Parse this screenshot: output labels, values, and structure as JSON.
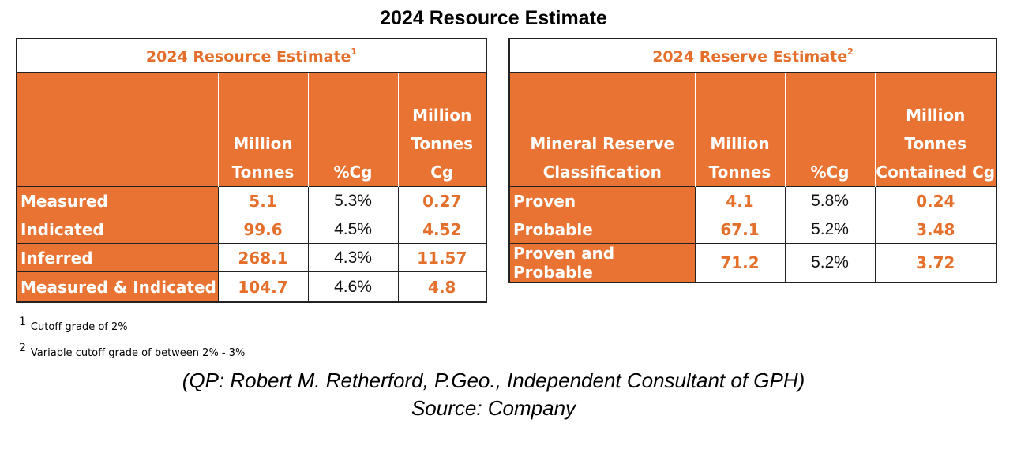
{
  "title": "2024 Resource Estimate",
  "resource": {
    "caption": "2024 Resource Estimate",
    "caption_sup": "1",
    "headers": [
      [],
      [
        "Million",
        "Tonnes"
      ],
      [
        "%Cg"
      ],
      [
        "Million",
        "Tonnes",
        "Cg"
      ]
    ],
    "rows": [
      {
        "label": "Measured",
        "tonnes": "5.1",
        "grade": "5.3%",
        "cg": "0.27"
      },
      {
        "label": "Indicated",
        "tonnes": "99.6",
        "grade": "4.5%",
        "cg": "4.52"
      },
      {
        "label": "Inferred",
        "tonnes": "268.1",
        "grade": "4.3%",
        "cg": "11.57"
      },
      {
        "label": "Measured & Indicated",
        "tonnes": "104.7",
        "grade": "4.6%",
        "cg": "4.8"
      }
    ]
  },
  "reserve": {
    "caption": "2024 Reserve Estimate",
    "caption_sup": "2",
    "headers": [
      [
        "Mineral Reserve",
        "Classification"
      ],
      [
        "Million",
        "Tonnes"
      ],
      [
        "%Cg"
      ],
      [
        "Million",
        "Tonnes",
        "Contained Cg"
      ]
    ],
    "rows": [
      {
        "label": "Proven",
        "tonnes": "4.1",
        "grade": "5.8%",
        "cg": "0.24"
      },
      {
        "label": "Probable",
        "tonnes": "67.1",
        "grade": "5.2%",
        "cg": "3.48"
      },
      {
        "label": "Proven and Probable",
        "tonnes": "71.2",
        "grade": "5.2%",
        "cg": "3.72"
      }
    ]
  },
  "footnotes": [
    {
      "mark": "1",
      "text": "Cutoff grade of 2%"
    },
    {
      "mark": "2",
      "text": "Variable cutoff grade of between 2% - 3%"
    }
  ],
  "credits": {
    "qp": "(QP:  Robert M. Retherford, P.Geo., Independent Consultant of GPH)",
    "source": "Source: Company"
  }
}
